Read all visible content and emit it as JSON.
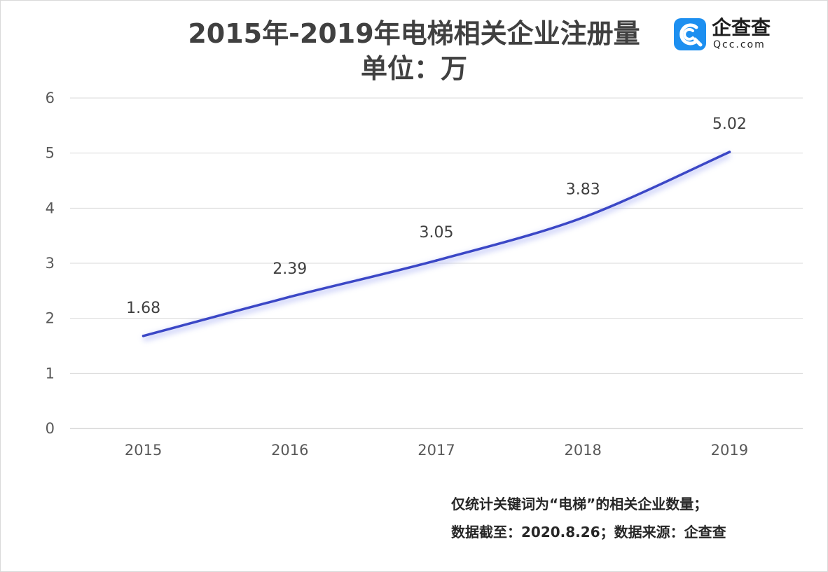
{
  "chart_data": {
    "type": "line",
    "title": "2015年-2019年电梯相关企业注册量",
    "subtitle": "单位：万",
    "categories": [
      "2015",
      "2016",
      "2017",
      "2018",
      "2019"
    ],
    "series": [
      {
        "values": [
          1.68,
          2.39,
          3.05,
          3.83,
          5.02
        ],
        "color": "#3b47c6"
      }
    ],
    "data_labels": [
      "1.68",
      "2.39",
      "3.05",
      "3.83",
      "5.02"
    ],
    "ylim": [
      0,
      6
    ],
    "yticks": [
      "0",
      "1",
      "2",
      "3",
      "4",
      "5",
      "6"
    ],
    "grid": true,
    "legend": "none",
    "xlabel": "",
    "ylabel": ""
  },
  "logo": {
    "name": "企查查",
    "domain": "Qcc.com",
    "icon": "qcc-logo-icon",
    "color": "#1d8ff0"
  },
  "notes": [
    "仅统计关键词为“电梯”的相关企业数量；",
    "数据截至：2020.8.26；数据来源：企查查"
  ]
}
